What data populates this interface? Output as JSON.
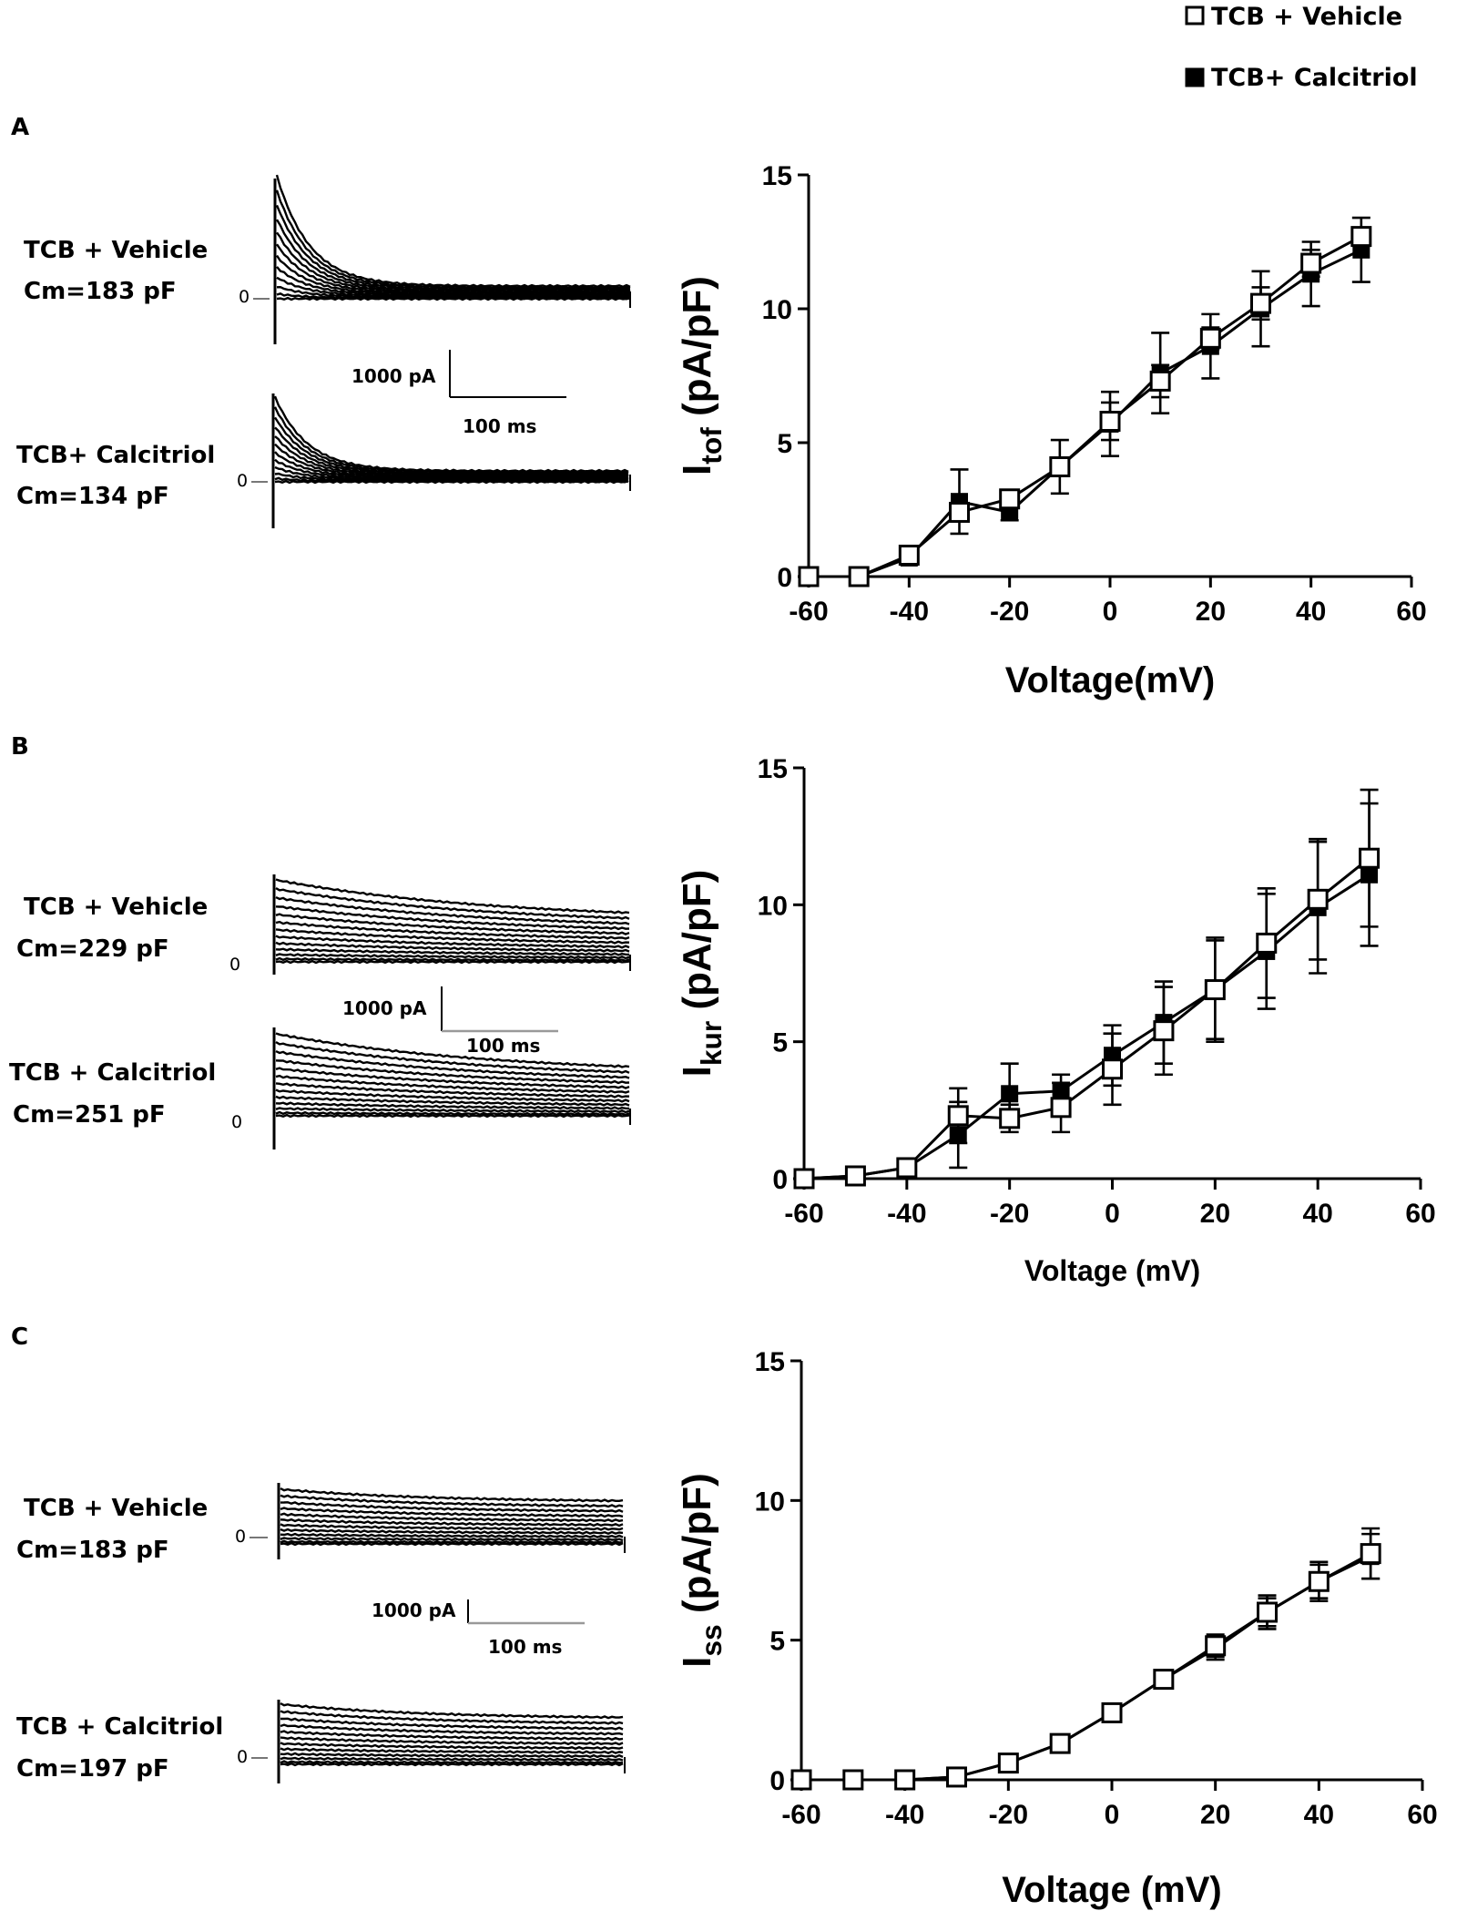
{
  "legend": [
    {
      "label": "TCB + Vehicle",
      "marker": "open-square"
    },
    {
      "label": "TCB+ Calcitriol",
      "marker": "filled-square"
    }
  ],
  "colors": {
    "ink": "#000000",
    "open_fill": "#ffffff",
    "scale_bar_gray": "#999999"
  },
  "panels": [
    {
      "letter": "A",
      "traces": [
        {
          "group": "TCB + Vehicle",
          "cm": "Cm=183 pF",
          "zero": "0"
        },
        {
          "group": "TCB+ Calcitriol",
          "cm": "Cm=134 pF",
          "zero": "0"
        }
      ],
      "scale_bar": {
        "current": "1000  pA",
        "time": "100 ms"
      }
    },
    {
      "letter": "B",
      "traces": [
        {
          "group": "TCB + Vehicle",
          "cm": "Cm=229  pF",
          "zero": "0"
        },
        {
          "group": "TCB + Calcitriol",
          "cm": "Cm=251  pF",
          "zero": "0"
        }
      ],
      "scale_bar": {
        "current": "1000  pA",
        "time": "100 ms"
      }
    },
    {
      "letter": "C",
      "traces": [
        {
          "group": "TCB + Vehicle",
          "cm": "Cm=183  pF",
          "zero": "0"
        },
        {
          "group": "TCB + Calcitriol",
          "cm": "Cm=197  pF",
          "zero": "0"
        }
      ],
      "scale_bar": {
        "current": "1000  pA",
        "time": "100 ms"
      }
    }
  ],
  "chart_data": [
    {
      "type": "line",
      "panel": "A",
      "title": "",
      "ylabel_main": "I",
      "ylabel_sub": "tof",
      "ylabel_unit": " (pA/pF)",
      "xlabel": "Voltage(mV)",
      "xlim": [
        -60,
        60
      ],
      "ylim": [
        0,
        15
      ],
      "xticks": [
        -60,
        -40,
        -20,
        0,
        20,
        40,
        60
      ],
      "yticks": [
        0,
        5,
        10,
        15
      ],
      "x": [
        -60,
        -50,
        -40,
        -30,
        -20,
        -10,
        0,
        10,
        20,
        30,
        40,
        50
      ],
      "series": [
        {
          "name": "TCB + Vehicle",
          "marker": "open-square",
          "values": [
            0,
            0,
            0.8,
            2.4,
            2.9,
            4.1,
            5.8,
            7.3,
            8.9,
            10.2,
            11.7,
            12.7
          ],
          "errors": [
            0,
            0,
            0,
            0,
            0.3,
            0.3,
            0.7,
            0.6,
            0.4,
            0.6,
            0.5,
            0.3
          ]
        },
        {
          "name": "TCB+ Calcitriol",
          "marker": "filled-square",
          "values": [
            0,
            0,
            0.7,
            2.8,
            2.4,
            4.1,
            5.7,
            7.6,
            8.6,
            10.0,
            11.3,
            12.2
          ],
          "errors": [
            0,
            0,
            0,
            1.2,
            0.3,
            1.0,
            1.2,
            1.5,
            1.2,
            1.4,
            1.2,
            1.2
          ]
        }
      ]
    },
    {
      "type": "line",
      "panel": "B",
      "title": "",
      "ylabel_main": "I",
      "ylabel_sub": "kur",
      "ylabel_unit": " (pA/pF)",
      "xlabel": "Voltage (mV)",
      "xlim": [
        -60,
        60
      ],
      "ylim": [
        0,
        15
      ],
      "xticks": [
        -60,
        -40,
        -20,
        0,
        20,
        40,
        60
      ],
      "yticks": [
        0,
        5,
        10,
        15
      ],
      "x": [
        -60,
        -50,
        -40,
        -30,
        -20,
        -10,
        0,
        10,
        20,
        30,
        40,
        50
      ],
      "series": [
        {
          "name": "TCB + Vehicle",
          "marker": "open-square",
          "values": [
            0,
            0.1,
            0.4,
            2.3,
            2.2,
            2.6,
            4.0,
            5.4,
            6.9,
            8.6,
            10.2,
            11.7
          ],
          "errors": [
            0,
            0,
            0,
            1.0,
            0.5,
            0.9,
            1.3,
            1.6,
            1.8,
            2.0,
            2.2,
            2.5
          ]
        },
        {
          "name": "TCB+ Calcitriol",
          "marker": "filled-square",
          "values": [
            0,
            0.1,
            0.4,
            1.6,
            3.1,
            3.2,
            4.5,
            5.7,
            6.9,
            8.3,
            9.9,
            11.1
          ],
          "errors": [
            0,
            0,
            0,
            1.2,
            1.1,
            0.6,
            1.1,
            1.5,
            1.9,
            2.1,
            2.4,
            2.6
          ]
        }
      ]
    },
    {
      "type": "line",
      "panel": "C",
      "title": "",
      "ylabel_main": "I",
      "ylabel_sub": "ss",
      "ylabel_unit": " (pA/pF)",
      "xlabel": "Voltage (mV)",
      "xlim": [
        -60,
        60
      ],
      "ylim": [
        0,
        15
      ],
      "xticks": [
        -60,
        -40,
        -20,
        0,
        20,
        40,
        60
      ],
      "yticks": [
        0,
        5,
        10,
        15
      ],
      "x": [
        -60,
        -50,
        -40,
        -30,
        -20,
        -10,
        0,
        10,
        20,
        30,
        40,
        50
      ],
      "series": [
        {
          "name": "TCB + Vehicle",
          "marker": "open-square",
          "values": [
            0,
            0,
            0,
            0.1,
            0.6,
            1.3,
            2.4,
            3.6,
            4.8,
            6.0,
            7.1,
            8.1
          ],
          "errors": [
            0,
            0,
            0,
            0,
            0,
            0.1,
            0.2,
            0.3,
            0.4,
            0.6,
            0.7,
            0.9
          ]
        },
        {
          "name": "TCB+ Calcitriol",
          "marker": "filled-square",
          "values": [
            0,
            0,
            0,
            0.1,
            0.6,
            1.3,
            2.4,
            3.6,
            4.7,
            6.0,
            7.1,
            8.0
          ],
          "errors": [
            0,
            0,
            0,
            0,
            0,
            0.1,
            0.2,
            0.3,
            0.4,
            0.5,
            0.6,
            0.8
          ]
        }
      ]
    }
  ]
}
